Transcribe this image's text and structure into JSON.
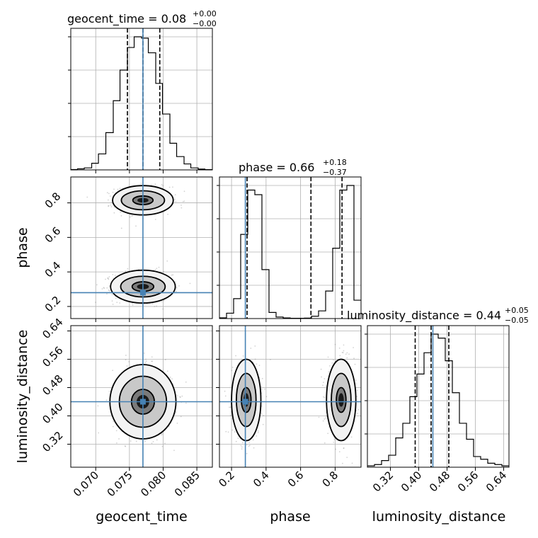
{
  "chart_data": {
    "type": "corner",
    "parameters": [
      "geocent_time",
      "phase",
      "luminosity_distance"
    ],
    "titles": [
      {
        "param": "geocent_time",
        "label": "geocent_time = 0.08",
        "plus": "+0.00",
        "minus": "−0.00"
      },
      {
        "param": "phase",
        "label": "phase = 0.66",
        "plus": "+0.18",
        "minus": "−0.37"
      },
      {
        "param": "luminosity_distance",
        "label": "luminosity_distance = 0.44",
        "plus": "+0.05",
        "minus": "−0.05"
      }
    ],
    "axis_labels": {
      "geocent_time": "geocent_time",
      "phase": "phase",
      "luminosity_distance": "luminosity_distance"
    },
    "ranges": {
      "geocent_time": [
        0.0663,
        0.0873
      ],
      "phase": [
        0.13,
        0.95
      ],
      "luminosity_distance": [
        0.255,
        0.655
      ]
    },
    "ticks": {
      "geocent_time": [
        0.07,
        0.075,
        0.08,
        0.085
      ],
      "geocent_time_labels": [
        "0.070",
        "0.075",
        "0.080",
        "0.085"
      ],
      "phase": [
        0.2,
        0.4,
        0.6,
        0.8
      ],
      "phase_labels": [
        "0.2",
        "0.4",
        "0.6",
        "0.8"
      ],
      "luminosity_distance": [
        0.32,
        0.4,
        0.48,
        0.56,
        0.64
      ],
      "luminosity_distance_labels": [
        "0.32",
        "0.40",
        "0.48",
        "0.56",
        "0.64"
      ]
    },
    "truths": {
      "geocent_time": 0.077,
      "phase": 0.28,
      "luminosity_distance": 0.44
    },
    "quantiles": {
      "geocent_time": [
        0.0747,
        0.077,
        0.0795
      ],
      "phase": [
        0.29,
        0.66,
        0.84
      ],
      "luminosity_distance": [
        0.39,
        0.435,
        0.485
      ]
    },
    "histograms": {
      "geocent_time": {
        "edges": [
          0.0663,
          0.0673,
          0.0683,
          0.0694,
          0.0704,
          0.0715,
          0.0726,
          0.0736,
          0.0747,
          0.0757,
          0.0768,
          0.0778,
          0.0789,
          0.0799,
          0.081,
          0.082,
          0.0831,
          0.0841,
          0.0852,
          0.0862,
          0.0873
        ],
        "counts": [
          0.3,
          0.8,
          1.5,
          5,
          12,
          28,
          52,
          75,
          92,
          100,
          99,
          88,
          65,
          42,
          20,
          10,
          4.5,
          1.5,
          0.6,
          0.2
        ]
      },
      "phase": {
        "edges": [
          0.13,
          0.171,
          0.212,
          0.253,
          0.294,
          0.335,
          0.376,
          0.417,
          0.458,
          0.499,
          0.54,
          0.581,
          0.622,
          0.663,
          0.704,
          0.745,
          0.786,
          0.827,
          0.868,
          0.909,
          0.95
        ],
        "counts": [
          0.5,
          3.5,
          13,
          55,
          84,
          81,
          32,
          4,
          1,
          0.4,
          0.2,
          0.2,
          0.3,
          1.5,
          5,
          18,
          46,
          84,
          87,
          12
        ]
      },
      "luminosity_distance": {
        "edges": [
          0.255,
          0.275,
          0.295,
          0.315,
          0.335,
          0.355,
          0.375,
          0.395,
          0.415,
          0.435,
          0.455,
          0.475,
          0.495,
          0.515,
          0.535,
          0.555,
          0.575,
          0.595,
          0.615,
          0.635,
          0.655
        ],
        "counts": [
          1,
          2,
          5,
          9,
          22,
          33,
          53,
          70,
          86,
          100,
          97,
          80,
          56,
          33,
          21,
          8,
          6,
          3,
          2,
          1
        ]
      }
    },
    "contours_2d": {
      "phase_vs_geocent_time": [
        {
          "mode": "high",
          "cx": 0.077,
          "cy": 0.815,
          "levels": [
            [
              0.0045,
              0.085
            ],
            [
              0.0032,
              0.055
            ],
            [
              0.0015,
              0.025
            ]
          ]
        },
        {
          "mode": "low",
          "cx": 0.077,
          "cy": 0.315,
          "levels": [
            [
              0.0048,
              0.095
            ],
            [
              0.0033,
              0.06
            ],
            [
              0.0016,
              0.028
            ]
          ]
        }
      ],
      "luminosity_distance_vs_geocent_time": [
        {
          "mode": "single",
          "cx": 0.077,
          "cy": 0.44,
          "levels": [
            [
              0.0049,
              0.105
            ],
            [
              0.0035,
              0.072
            ],
            [
              0.0017,
              0.035
            ]
          ]
        }
      ],
      "luminosity_distance_vs_phase": [
        {
          "mode": "low",
          "cx": 0.285,
          "cy": 0.445,
          "levels": [
            [
              0.085,
              0.115
            ],
            [
              0.057,
              0.075
            ],
            [
              0.028,
              0.035
            ]
          ]
        },
        {
          "mode": "high",
          "cx": 0.835,
          "cy": 0.445,
          "levels": [
            [
              0.085,
              0.115
            ],
            [
              0.057,
              0.075
            ],
            [
              0.028,
              0.035
            ]
          ]
        }
      ]
    },
    "colors": {
      "truth": "#4682b4",
      "line": "#000000",
      "grid": "#b0b0b0",
      "scatter": "#808080"
    }
  }
}
